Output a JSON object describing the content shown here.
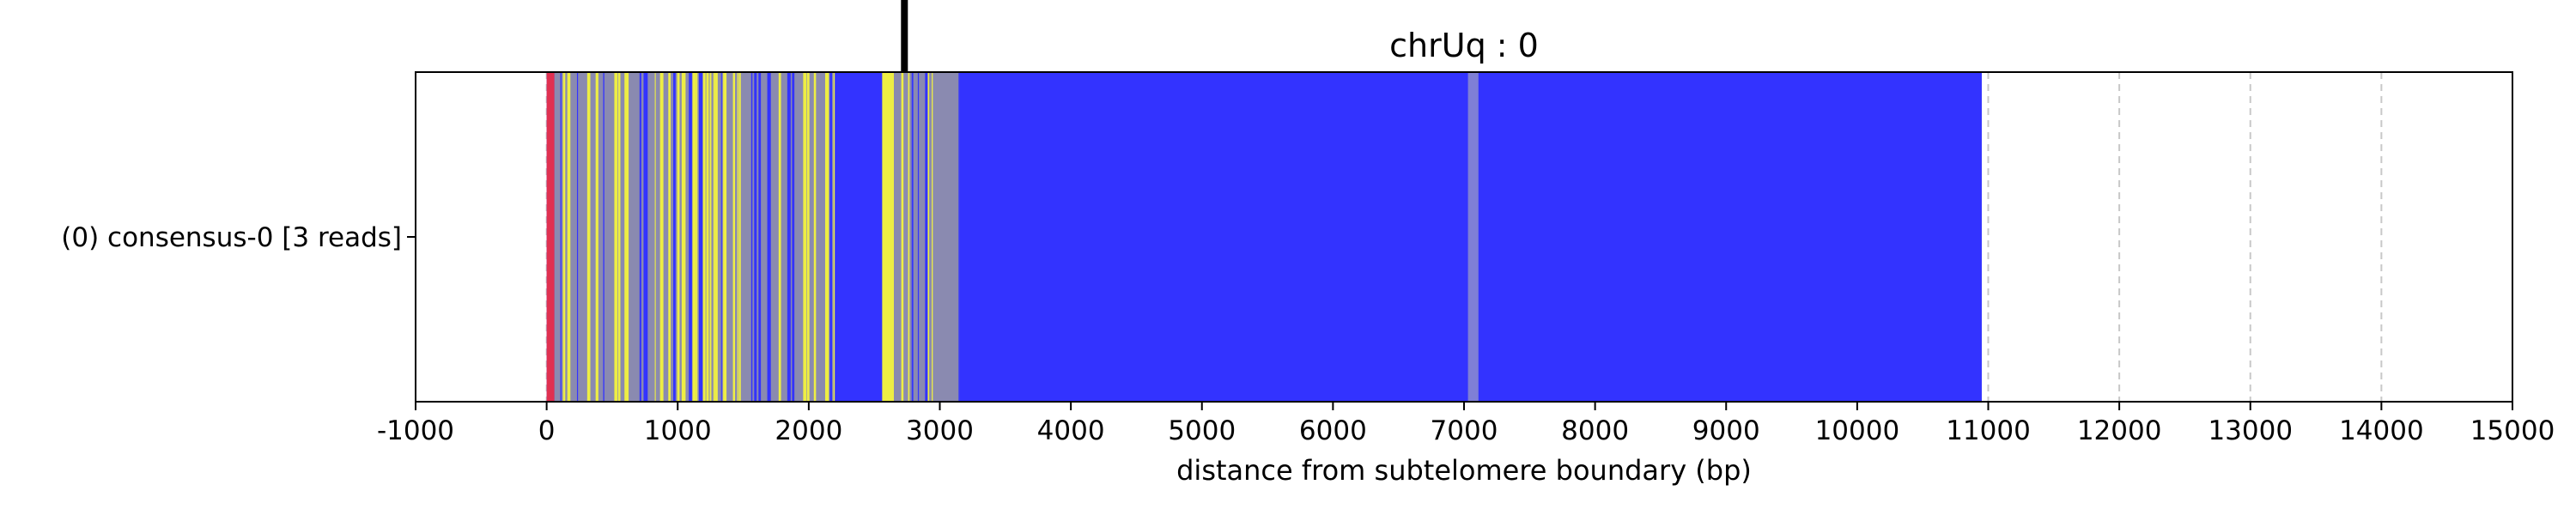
{
  "chart_data": {
    "type": "bar",
    "title": "chrUq : 0",
    "xlabel": "distance from subtelomere boundary (bp)",
    "ylabel": "",
    "xlim": [
      -1000,
      15000
    ],
    "xticks": [
      -1000,
      0,
      1000,
      2000,
      3000,
      4000,
      5000,
      6000,
      7000,
      8000,
      9000,
      10000,
      11000,
      12000,
      13000,
      14000,
      15000
    ],
    "xtick_labels": [
      "-1000",
      "0",
      "1000",
      "2000",
      "3000",
      "4000",
      "5000",
      "6000",
      "7000",
      "8000",
      "9000",
      "10000",
      "11000",
      "12000",
      "13000",
      "14000",
      "15000"
    ],
    "grid": "x dashed",
    "categories": [
      "(0) consensus-0 [3 reads]"
    ],
    "series": [
      {
        "name": "",
        "start": 0,
        "end": 10950,
        "base_color": "#3333ff",
        "segments": [
          {
            "start": 0,
            "end": 60,
            "color": "#e03050"
          },
          {
            "start": 60,
            "end": 2200,
            "color": "#8a8ab0",
            "pattern": "dense-stripes"
          },
          {
            "start": 2200,
            "end": 2560,
            "color": "#3333ff"
          },
          {
            "start": 2560,
            "end": 2650,
            "color": "#eeee44"
          },
          {
            "start": 2650,
            "end": 3150,
            "color": "#8a8ab0",
            "pattern": "sparse-stripes"
          },
          {
            "start": 3150,
            "end": 10950,
            "color": "#3333ff"
          },
          {
            "start": 7030,
            "end": 7110,
            "color": "#7f7fd6"
          }
        ]
      }
    ],
    "annotations": [
      {
        "type": "vertical-line",
        "x": 2730,
        "color": "#000000",
        "placement": "above-axes"
      }
    ],
    "colors": {
      "main": "#3333ff",
      "alt": "#8a8ab0",
      "highlight": "#eeee44",
      "start": "#e03050",
      "grid": "#c8c8c8"
    }
  }
}
